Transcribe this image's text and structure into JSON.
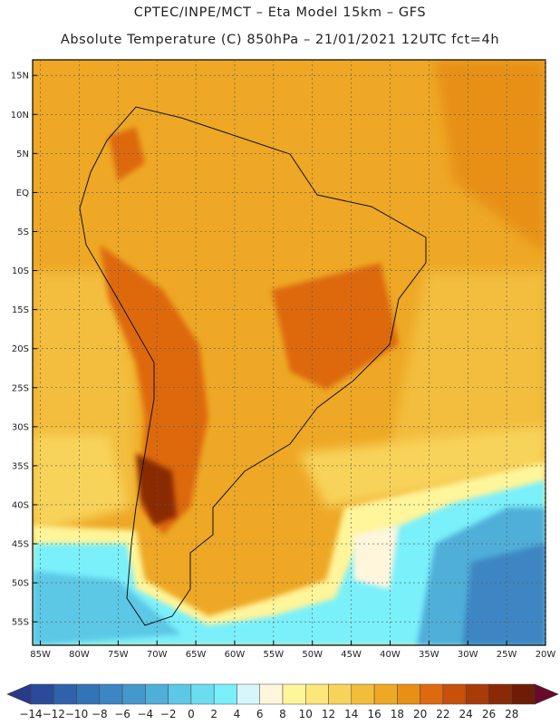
{
  "header": {
    "line1": "CPTEC/INPE/MCT –  Eta Model 15km – GFS",
    "line2": "Absolute Temperature (C) 850hPa – 21/01/2021 12UTC fct=4h"
  },
  "map": {
    "lon_range": [
      -86,
      -20
    ],
    "lat_range": [
      -58,
      17
    ],
    "lat_ticks": [
      "15N",
      "10N",
      "5N",
      "EQ",
      "5S",
      "10S",
      "15S",
      "20S",
      "25S",
      "30S",
      "35S",
      "40S",
      "45S",
      "50S",
      "55S"
    ],
    "lat_values": [
      15,
      10,
      5,
      0,
      -5,
      -10,
      -15,
      -20,
      -25,
      -30,
      -35,
      -40,
      -45,
      -50,
      -55
    ],
    "lon_ticks": [
      "85W",
      "80W",
      "75W",
      "70W",
      "65W",
      "60W",
      "55W",
      "50W",
      "45W",
      "40W",
      "35W",
      "30W",
      "25W",
      "20W"
    ],
    "lon_values": [
      -85,
      -80,
      -75,
      -70,
      -65,
      -60,
      -55,
      -50,
      -45,
      -40,
      -35,
      -30,
      -25,
      -20
    ]
  },
  "colorbar": {
    "labels": [
      "-14",
      "-12",
      "-10",
      "-8",
      "-6",
      "-4",
      "-2",
      "0",
      "2",
      "4",
      "6",
      "8",
      "10",
      "12",
      "14",
      "16",
      "18",
      "20",
      "22",
      "24",
      "26",
      "28"
    ],
    "colors": [
      "#2a4a9a",
      "#2f62aa",
      "#3373b7",
      "#3c86c3",
      "#4498cc",
      "#4fafd9",
      "#5cc8e6",
      "#6cdcf0",
      "#7af0fa",
      "#d6f6fb",
      "#fff6dc",
      "#fff59a",
      "#fce77a",
      "#f8d35a",
      "#f3bd3c",
      "#eea825",
      "#e89016",
      "#de6910",
      "#c8500b",
      "#a93b08",
      "#8a2906",
      "#6e1d05"
    ],
    "under_color": "#2a3a8a",
    "over_color": "#6a0a2a"
  }
}
